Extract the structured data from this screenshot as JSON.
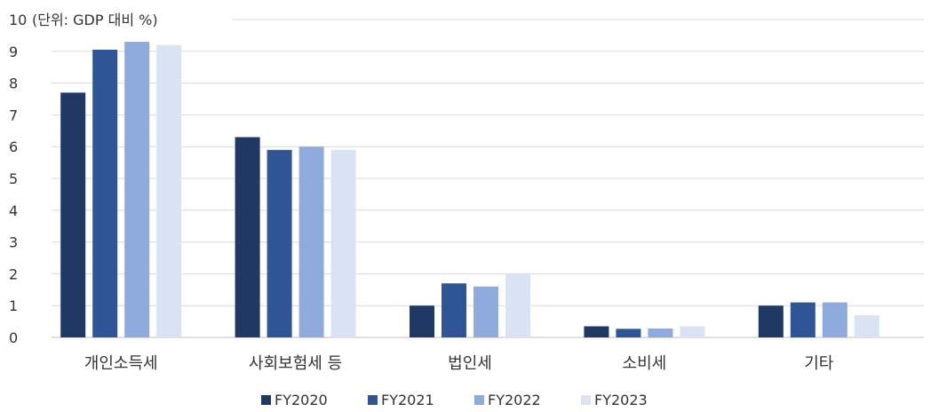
{
  "chart_data": {
    "type": "bar",
    "unit_label": "(단위: GDP 대비 %)",
    "categories": [
      "개인소득세",
      "사회보험세 등",
      "법인세",
      "소비세",
      "기타"
    ],
    "series": [
      {
        "name": "FY2020",
        "color": "#203864",
        "values": [
          7.7,
          6.3,
          1.0,
          0.35,
          1.0
        ]
      },
      {
        "name": "FY2021",
        "color": "#2F5597",
        "values": [
          9.05,
          5.9,
          1.7,
          0.27,
          1.1
        ]
      },
      {
        "name": "FY2022",
        "color": "#8FAADC",
        "values": [
          9.3,
          6.0,
          1.6,
          0.28,
          1.1
        ]
      },
      {
        "name": "FY2023",
        "color": "#DAE3F3",
        "values": [
          9.2,
          5.9,
          2.0,
          0.35,
          0.7
        ]
      }
    ],
    "yticks": [
      "0",
      "1",
      "2",
      "3",
      "4",
      "5",
      "6",
      "7",
      "8",
      "9",
      "10"
    ],
    "ylim": [
      0,
      10
    ],
    "grid": true,
    "legend_position": "bottom"
  }
}
